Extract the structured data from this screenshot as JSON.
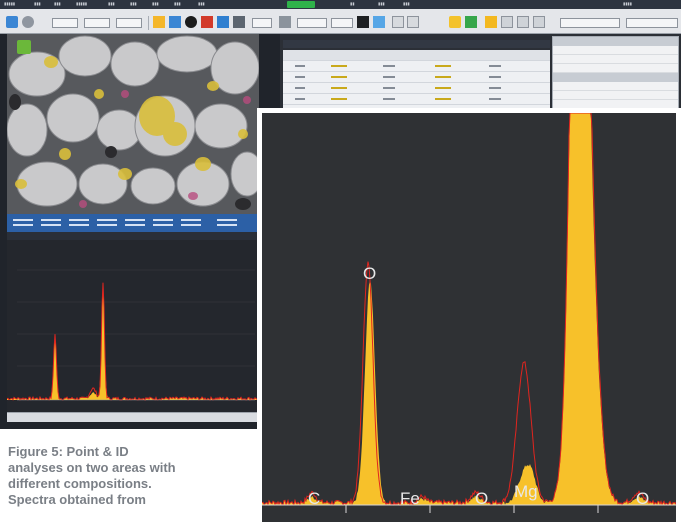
{
  "colors": {
    "spectrum_fill": "#f7c12a",
    "spectrum_line": "#e0251f",
    "app_dark": "#20242b",
    "info_bar": "#2c60a6",
    "caption_text": "#7a7f86"
  },
  "toolbar": {
    "icons": [
      "home-icon",
      "zoom-icon",
      "contrast-icon",
      "flag-icon",
      "chart-icon",
      "grid-icon",
      "settings-icon"
    ]
  },
  "zoomed_spectrum": {
    "element_labels": [
      "C",
      "O",
      "Fe",
      "O",
      "Mg",
      "O"
    ]
  },
  "caption": {
    "line1": "Figure 5: Point & ID",
    "line2": "analyses on two areas with",
    "line3": "different compositions.",
    "line4": "Spectra obtained from"
  }
}
